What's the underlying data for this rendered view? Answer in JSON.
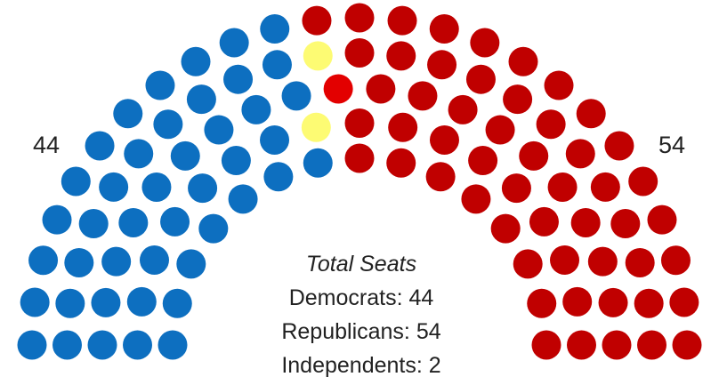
{
  "chart_data": {
    "type": "parliament",
    "total_seats": 100,
    "left_count_label": "44",
    "right_count_label": "54",
    "summary": {
      "title": "Total Seats",
      "lines": [
        "Democrats: 44",
        "Republicans: 54",
        "Independents: 2"
      ]
    },
    "series": [
      {
        "name": "Democrats",
        "seats": 44,
        "color": "#0d6fc0"
      },
      {
        "name": "Independents",
        "seats": 2,
        "color": "#fdfb73"
      },
      {
        "name": "Republicans",
        "seats": 54,
        "color": "#c00000"
      }
    ],
    "highlight_seat": {
      "party": "Republicans",
      "color": "#e30000"
    }
  }
}
